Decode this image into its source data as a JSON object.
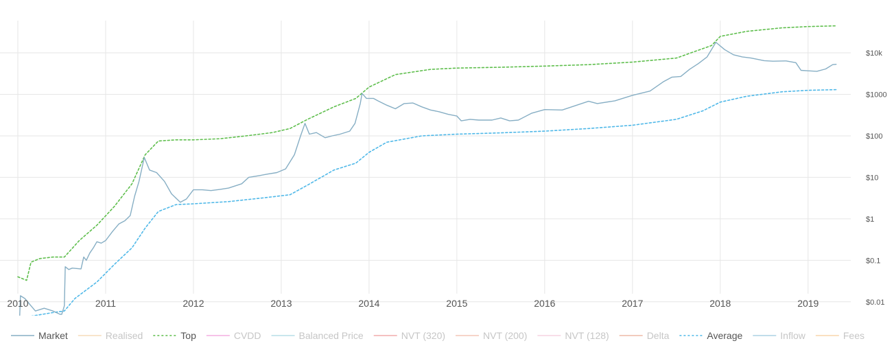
{
  "chart_data": {
    "type": "line",
    "title": "",
    "xlabel": "",
    "ylabel": "",
    "y_scale": "log",
    "xlim": [
      2010.0,
      2019.33
    ],
    "ylim": [
      0.005,
      60000
    ],
    "grid": true,
    "legend_position": "bottom",
    "x_ticks": [
      "2010",
      "2011",
      "2012",
      "2013",
      "2014",
      "2015",
      "2016",
      "2017",
      "2018",
      "2019"
    ],
    "y_ticks": [
      {
        "value": 0.01,
        "label": "$0.01"
      },
      {
        "value": 0.1,
        "label": "$0.1"
      },
      {
        "value": 1,
        "label": "$1"
      },
      {
        "value": 10,
        "label": "$10"
      },
      {
        "value": 100,
        "label": "$100"
      },
      {
        "value": 1000,
        "label": "$1000"
      },
      {
        "value": 10000,
        "label": "$10k"
      }
    ],
    "legend": [
      {
        "name": "Market",
        "color": "#86aec4",
        "dash": "solid",
        "active": true
      },
      {
        "name": "Realised",
        "color": "#f3cfa4",
        "dash": "solid",
        "active": false
      },
      {
        "name": "Top",
        "color": "#5ebe4c",
        "dash": "dotted",
        "active": true
      },
      {
        "name": "CVDD",
        "color": "#f094d8",
        "dash": "solid",
        "active": false
      },
      {
        "name": "Balanced Price",
        "color": "#9fd3df",
        "dash": "solid",
        "active": false
      },
      {
        "name": "NVT (320)",
        "color": "#ee8f8f",
        "dash": "solid",
        "active": false
      },
      {
        "name": "NVT (200)",
        "color": "#efb2a0",
        "dash": "solid",
        "active": false
      },
      {
        "name": "NVT (128)",
        "color": "#f3c6d6",
        "dash": "solid",
        "active": false
      },
      {
        "name": "Delta",
        "color": "#e8a48a",
        "dash": "solid",
        "active": false
      },
      {
        "name": "Average",
        "color": "#4fb8e8",
        "dash": "dotted",
        "active": true
      },
      {
        "name": "Inflow",
        "color": "#8fc3dc",
        "dash": "solid",
        "active": false
      },
      {
        "name": "Fees",
        "color": "#f8c890",
        "dash": "solid",
        "active": false
      }
    ],
    "series": [
      {
        "name": "Market",
        "color": "#86aec4",
        "dash": "solid",
        "points": [
          [
            2010.02,
            0.004
          ],
          [
            2010.03,
            0.014
          ],
          [
            2010.08,
            0.012
          ],
          [
            2010.15,
            0.008
          ],
          [
            2010.2,
            0.006
          ],
          [
            2010.3,
            0.007
          ],
          [
            2010.4,
            0.006
          ],
          [
            2010.48,
            0.005
          ],
          [
            2010.5,
            0.005
          ],
          [
            2010.53,
            0.008
          ],
          [
            2010.54,
            0.07
          ],
          [
            2010.58,
            0.06
          ],
          [
            2010.62,
            0.065
          ],
          [
            2010.72,
            0.062
          ],
          [
            2010.75,
            0.12
          ],
          [
            2010.78,
            0.1
          ],
          [
            2010.82,
            0.15
          ],
          [
            2010.86,
            0.2
          ],
          [
            2010.9,
            0.28
          ],
          [
            2010.95,
            0.26
          ],
          [
            2011.0,
            0.3
          ],
          [
            2011.08,
            0.5
          ],
          [
            2011.15,
            0.75
          ],
          [
            2011.22,
            0.9
          ],
          [
            2011.28,
            1.2
          ],
          [
            2011.33,
            3.5
          ],
          [
            2011.38,
            8
          ],
          [
            2011.44,
            30
          ],
          [
            2011.5,
            15
          ],
          [
            2011.58,
            13
          ],
          [
            2011.67,
            8
          ],
          [
            2011.75,
            4
          ],
          [
            2011.85,
            2.5
          ],
          [
            2011.92,
            3
          ],
          [
            2012.0,
            5
          ],
          [
            2012.1,
            5
          ],
          [
            2012.2,
            4.8
          ],
          [
            2012.3,
            5.1
          ],
          [
            2012.4,
            5.5
          ],
          [
            2012.55,
            7
          ],
          [
            2012.63,
            10
          ],
          [
            2012.75,
            11
          ],
          [
            2012.85,
            12
          ],
          [
            2012.95,
            13
          ],
          [
            2013.05,
            16
          ],
          [
            2013.15,
            35
          ],
          [
            2013.22,
            100
          ],
          [
            2013.27,
            200
          ],
          [
            2013.32,
            110
          ],
          [
            2013.4,
            120
          ],
          [
            2013.5,
            90
          ],
          [
            2013.58,
            100
          ],
          [
            2013.67,
            110
          ],
          [
            2013.78,
            130
          ],
          [
            2013.84,
            200
          ],
          [
            2013.9,
            600
          ],
          [
            2013.92,
            1050
          ],
          [
            2013.97,
            800
          ],
          [
            2014.05,
            800
          ],
          [
            2014.1,
            700
          ],
          [
            2014.2,
            550
          ],
          [
            2014.3,
            450
          ],
          [
            2014.4,
            600
          ],
          [
            2014.5,
            620
          ],
          [
            2014.6,
            500
          ],
          [
            2014.7,
            420
          ],
          [
            2014.8,
            380
          ],
          [
            2014.9,
            330
          ],
          [
            2015.0,
            300
          ],
          [
            2015.05,
            230
          ],
          [
            2015.15,
            250
          ],
          [
            2015.25,
            240
          ],
          [
            2015.4,
            240
          ],
          [
            2015.5,
            270
          ],
          [
            2015.6,
            230
          ],
          [
            2015.7,
            240
          ],
          [
            2015.85,
            350
          ],
          [
            2016.0,
            430
          ],
          [
            2016.2,
            420
          ],
          [
            2016.4,
            580
          ],
          [
            2016.5,
            680
          ],
          [
            2016.6,
            600
          ],
          [
            2016.8,
            700
          ],
          [
            2017.0,
            950
          ],
          [
            2017.2,
            1200
          ],
          [
            2017.35,
            2000
          ],
          [
            2017.45,
            2600
          ],
          [
            2017.55,
            2700
          ],
          [
            2017.65,
            4000
          ],
          [
            2017.75,
            5500
          ],
          [
            2017.85,
            8000
          ],
          [
            2017.95,
            18000
          ],
          [
            2018.05,
            12000
          ],
          [
            2018.15,
            9000
          ],
          [
            2018.25,
            8000
          ],
          [
            2018.35,
            7500
          ],
          [
            2018.5,
            6500
          ],
          [
            2018.6,
            6300
          ],
          [
            2018.75,
            6400
          ],
          [
            2018.86,
            5800
          ],
          [
            2018.92,
            3800
          ],
          [
            2019.0,
            3700
          ],
          [
            2019.1,
            3600
          ],
          [
            2019.2,
            4100
          ],
          [
            2019.28,
            5200
          ],
          [
            2019.32,
            5300
          ]
        ]
      },
      {
        "name": "Top",
        "color": "#5ebe4c",
        "dash": "dotted",
        "points": [
          [
            2010.0,
            0.04
          ],
          [
            2010.1,
            0.033
          ],
          [
            2010.15,
            0.09
          ],
          [
            2010.25,
            0.11
          ],
          [
            2010.4,
            0.12
          ],
          [
            2010.53,
            0.12
          ],
          [
            2010.7,
            0.3
          ],
          [
            2010.9,
            0.7
          ],
          [
            2011.1,
            2
          ],
          [
            2011.3,
            7
          ],
          [
            2011.45,
            35
          ],
          [
            2011.6,
            75
          ],
          [
            2011.8,
            80
          ],
          [
            2012.0,
            80
          ],
          [
            2012.3,
            85
          ],
          [
            2012.6,
            100
          ],
          [
            2012.9,
            120
          ],
          [
            2013.1,
            150
          ],
          [
            2013.3,
            250
          ],
          [
            2013.6,
            500
          ],
          [
            2013.85,
            800
          ],
          [
            2014.0,
            1500
          ],
          [
            2014.3,
            3000
          ],
          [
            2014.7,
            4000
          ],
          [
            2015.0,
            4300
          ],
          [
            2015.5,
            4500
          ],
          [
            2016.0,
            4800
          ],
          [
            2016.5,
            5200
          ],
          [
            2017.0,
            6000
          ],
          [
            2017.5,
            7500
          ],
          [
            2017.9,
            15000
          ],
          [
            2018.0,
            25000
          ],
          [
            2018.3,
            33000
          ],
          [
            2018.7,
            40000
          ],
          [
            2019.0,
            43000
          ],
          [
            2019.33,
            45000
          ]
        ]
      },
      {
        "name": "Average",
        "color": "#4fb8e8",
        "dash": "dotted",
        "points": [
          [
            2010.15,
            0.0045
          ],
          [
            2010.4,
            0.0055
          ],
          [
            2010.53,
            0.006
          ],
          [
            2010.65,
            0.012
          ],
          [
            2010.9,
            0.03
          ],
          [
            2011.1,
            0.08
          ],
          [
            2011.3,
            0.2
          ],
          [
            2011.45,
            0.6
          ],
          [
            2011.6,
            1.5
          ],
          [
            2011.8,
            2.2
          ],
          [
            2012.0,
            2.3
          ],
          [
            2012.4,
            2.6
          ],
          [
            2012.8,
            3.2
          ],
          [
            2013.1,
            3.8
          ],
          [
            2013.3,
            6.5
          ],
          [
            2013.6,
            15
          ],
          [
            2013.85,
            22
          ],
          [
            2014.0,
            40
          ],
          [
            2014.2,
            70
          ],
          [
            2014.6,
            100
          ],
          [
            2015.0,
            110
          ],
          [
            2015.5,
            118
          ],
          [
            2016.0,
            130
          ],
          [
            2016.5,
            150
          ],
          [
            2017.0,
            180
          ],
          [
            2017.5,
            250
          ],
          [
            2017.8,
            400
          ],
          [
            2018.0,
            650
          ],
          [
            2018.3,
            900
          ],
          [
            2018.7,
            1150
          ],
          [
            2019.0,
            1250
          ],
          [
            2019.33,
            1300
          ]
        ]
      }
    ]
  }
}
